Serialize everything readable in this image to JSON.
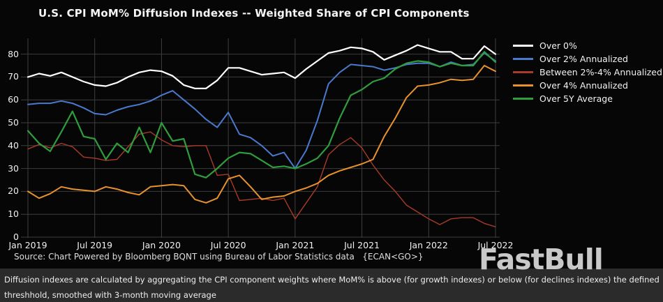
{
  "title": "U.S. CPI MoM% Diffusion Indexes -- Weighted Share of CPI Components",
  "source_line": "Source: Chart Powered by Bloomberg BQNT using Bureau of Labor Statistics data   {ECAN<GO>}",
  "watermark": "FastBull",
  "caption": {
    "line1": "Diffusion indexes are calculated by aggregating the CPI component weights where MoM% is above (for growth indexes) or below (for declines indexes) the defined",
    "line2": "threshhold, smoothed with 3-month moving average"
  },
  "colors": {
    "background": "#060606",
    "caption_bar": "#2b2b2b",
    "gridline": "#3e3e3e",
    "tick_text": "#f0f0f0",
    "watermark": "#c9c9c9"
  },
  "chart_data": {
    "type": "line",
    "title": "U.S. CPI MoM% Diffusion Indexes -- Weighted Share of CPI Components",
    "xlabel": "",
    "ylabel": "",
    "ylim": [
      0,
      87
    ],
    "grid": true,
    "legend_position": "top-right",
    "y_ticks": [
      0,
      10,
      20,
      30,
      40,
      50,
      60,
      70,
      80
    ],
    "x_tick_labels": [
      "Jan 2019",
      "Jul 2019",
      "Jan 2020",
      "Jul 2020",
      "Jan 2021",
      "Jul 2021",
      "Jan 2022",
      "Jul 2022"
    ],
    "x_tick_indices": [
      0,
      6,
      12,
      18,
      24,
      30,
      36,
      42
    ],
    "months": [
      "Jan 2019",
      "Feb 2019",
      "Mar 2019",
      "Apr 2019",
      "May 2019",
      "Jun 2019",
      "Jul 2019",
      "Aug 2019",
      "Sep 2019",
      "Oct 2019",
      "Nov 2019",
      "Dec 2019",
      "Jan 2020",
      "Feb 2020",
      "Mar 2020",
      "Apr 2020",
      "May 2020",
      "Jun 2020",
      "Jul 2020",
      "Aug 2020",
      "Sep 2020",
      "Oct 2020",
      "Nov 2020",
      "Dec 2020",
      "Jan 2021",
      "Feb 2021",
      "Mar 2021",
      "Apr 2021",
      "May 2021",
      "Jun 2021",
      "Jul 2021",
      "Aug 2021",
      "Sep 2021",
      "Oct 2021",
      "Nov 2021",
      "Dec 2021",
      "Jan 2022",
      "Feb 2022",
      "Mar 2022",
      "Apr 2022",
      "May 2022",
      "Jun 2022",
      "Jul 2022"
    ],
    "series": [
      {
        "name": "Over 0%",
        "color": "#ffffff",
        "width": 2.2,
        "values": [
          70,
          71.5,
          70.5,
          72,
          70,
          68,
          66.5,
          66,
          67.5,
          70,
          72,
          73,
          72.5,
          70.5,
          66.5,
          65,
          65,
          68.5,
          74,
          74,
          72.5,
          71,
          71.5,
          72,
          69.5,
          73.5,
          77,
          80.5,
          81.5,
          83,
          82.5,
          81,
          77.5,
          79.5,
          81.5,
          84,
          82.5,
          81,
          81,
          78,
          78,
          83.5,
          80
        ]
      },
      {
        "name": "Over 2% Annualized",
        "color": "#4a7ace",
        "width": 2,
        "values": [
          58,
          58.5,
          58.5,
          59.5,
          58.5,
          56.5,
          54,
          53.5,
          55.5,
          57,
          58,
          59.5,
          62,
          64,
          60,
          56,
          51.5,
          48,
          54.5,
          45,
          43.5,
          40,
          35.5,
          37,
          30,
          38,
          51,
          67,
          72,
          75.5,
          75,
          74.5,
          73,
          74,
          75.5,
          76,
          76,
          74.5,
          76.5,
          75,
          75.5,
          80.5,
          77
        ]
      },
      {
        "name": "Between 2%-4% Annualized",
        "color": "#a93b28",
        "width": 1.4,
        "values": [
          38.5,
          40.5,
          39,
          41,
          39.5,
          35,
          34.5,
          33.5,
          34,
          39.5,
          45,
          46,
          42.5,
          40,
          39.5,
          40,
          40,
          27,
          27.5,
          16,
          16.5,
          17,
          16,
          17,
          8,
          15,
          22,
          36,
          40.5,
          43.5,
          39,
          31.5,
          25,
          20,
          14,
          11,
          8,
          5.5,
          8,
          8.5,
          8.5,
          6,
          4.5
        ]
      },
      {
        "name": "Over 4% Annualized",
        "color": "#e8922e",
        "width": 2,
        "values": [
          20,
          17,
          19,
          22,
          21,
          20.5,
          20,
          22,
          21,
          19.5,
          18.5,
          22,
          22.5,
          23,
          22.5,
          16.5,
          15,
          17,
          25.5,
          27,
          22,
          16.5,
          17.5,
          18,
          20,
          21.5,
          23.5,
          27,
          29,
          30.5,
          32,
          34,
          44,
          52,
          61,
          66,
          66.5,
          67.5,
          69,
          68.5,
          69,
          75,
          72.5
        ]
      },
      {
        "name": "Over 5Y Average",
        "color": "#2f9e3c",
        "width": 2.2,
        "values": [
          46.5,
          41,
          37.5,
          46,
          55,
          44,
          43,
          34,
          41,
          37,
          48,
          37,
          50,
          42,
          43,
          27.5,
          26,
          30,
          34.5,
          37,
          36.5,
          33.5,
          30.5,
          31,
          30,
          32,
          34.5,
          40,
          52,
          62,
          64.5,
          68,
          69.5,
          73.5,
          76,
          77,
          76.5,
          74.5,
          76,
          75,
          75,
          81,
          76.5
        ]
      }
    ]
  }
}
